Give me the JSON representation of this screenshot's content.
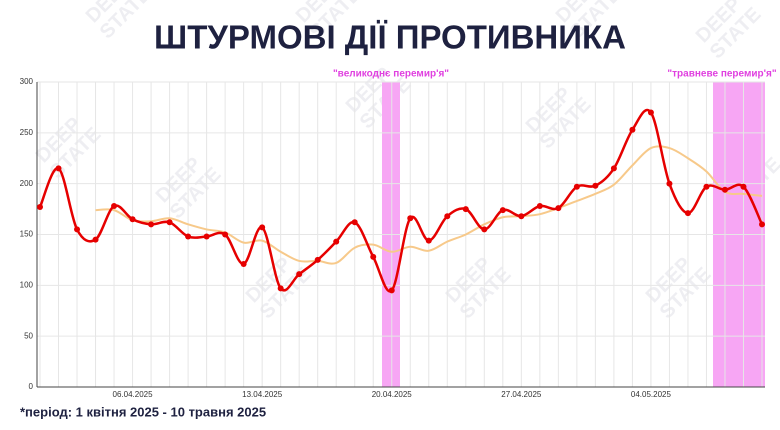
{
  "title": "ШТУРМОВІ ДІЇ ПРОТИВНИКА",
  "watermark": [
    "DEEP",
    "STATE"
  ],
  "footnote": "*період: 1 квітня 2025 - 10 травня 2025",
  "chart_data": {
    "type": "line",
    "categories": [
      null,
      null,
      null,
      null,
      null,
      "06.04.2025",
      null,
      null,
      null,
      null,
      null,
      null,
      "13.04.2025",
      null,
      null,
      null,
      null,
      null,
      null,
      "20.04.2025",
      null,
      null,
      null,
      null,
      null,
      null,
      "27.04.2025",
      null,
      null,
      null,
      null,
      null,
      null,
      "04.05.2025",
      null,
      null,
      null,
      null,
      null,
      null
    ],
    "series": [
      {
        "color": "#e60000",
        "values": [
          177,
          215,
          155,
          145,
          178,
          165,
          160,
          162,
          148,
          148,
          150,
          121,
          157,
          97,
          111,
          125,
          143,
          162,
          128,
          95,
          166,
          144,
          168,
          175,
          155,
          174,
          168,
          178,
          176,
          197,
          198,
          215,
          253,
          270,
          200,
          171,
          197,
          194,
          197,
          160
        ]
      },
      {
        "color": "#f7c98a",
        "values": [
          null,
          null,
          null,
          174,
          174,
          164,
          163,
          166,
          160,
          155,
          152,
          142,
          144,
          133,
          124,
          124,
          122,
          137,
          140,
          133,
          138,
          134,
          143,
          150,
          160,
          167,
          168,
          170,
          176,
          183,
          190,
          199,
          218,
          235,
          235,
          225,
          212,
          192,
          190,
          188
        ]
      }
    ],
    "ylim": [
      0,
      300
    ],
    "yticks": [
      0,
      50,
      100,
      150,
      200,
      250,
      300
    ],
    "grid": true,
    "annotations": [
      "\"великоднє перемир'я\"",
      "\"травневе перемир'я\""
    ]
  }
}
